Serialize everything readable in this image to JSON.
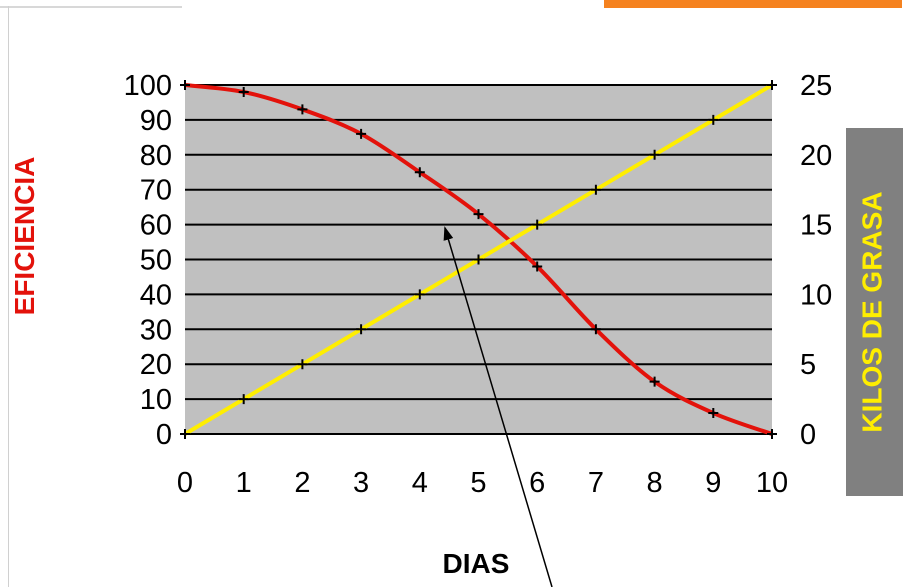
{
  "chart_data": {
    "type": "line",
    "x": [
      0,
      1,
      2,
      3,
      4,
      5,
      6,
      7,
      8,
      9,
      10
    ],
    "xlabel": "DIAS",
    "ylabel_left": "EFICIENCIA",
    "ylabel_right": "KILOS DE GRASA",
    "ylim_left": [
      0,
      100
    ],
    "ylim_right": [
      0,
      25
    ],
    "xlim": [
      0,
      10
    ],
    "x_ticks": [
      "0",
      "1",
      "2",
      "3",
      "4",
      "5",
      "6",
      "7",
      "8",
      "9",
      "10"
    ],
    "y_left_ticks": [
      "0",
      "10",
      "20",
      "30",
      "40",
      "50",
      "60",
      "70",
      "80",
      "90",
      "100"
    ],
    "y_right_ticks": [
      "0",
      "5",
      "10",
      "15",
      "20",
      "25"
    ],
    "grid": "horizontal",
    "series": [
      {
        "axis": "left",
        "color": "#e3120b",
        "values": [
          100,
          98,
          93,
          86,
          75,
          63,
          48,
          30,
          15,
          6,
          0
        ]
      },
      {
        "axis": "right",
        "color": "#ffee00",
        "values": [
          0,
          2.5,
          5,
          7.5,
          10,
          12.5,
          15,
          17.5,
          20,
          22.5,
          25
        ]
      }
    ],
    "annotation": "arrow"
  },
  "colors": {
    "plot_background": "#c0c0c0",
    "left_title": "#e3120b",
    "right_title_bg": "#808080",
    "right_title_text": "#ffee00",
    "accent_tab": "#f5821f"
  }
}
